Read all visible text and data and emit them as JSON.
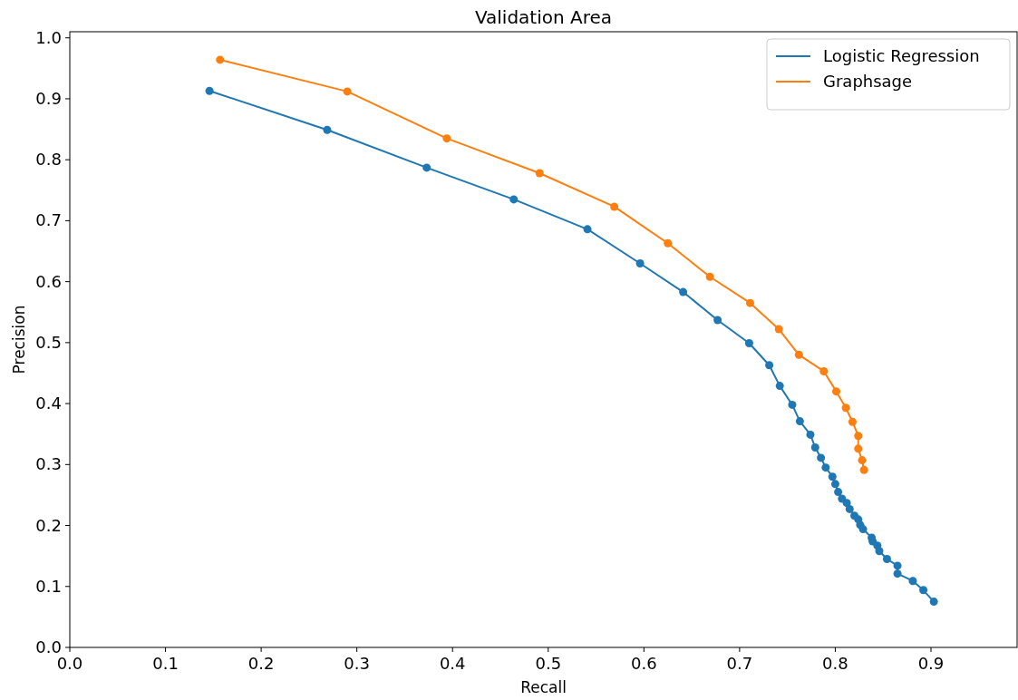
{
  "chart_data": {
    "type": "line",
    "title": "Validation Area",
    "xlabel": "Recall",
    "ylabel": "Precision",
    "xlim": [
      0,
      0.99
    ],
    "ylim": [
      0,
      1.01
    ],
    "xticks": [
      {
        "value": 0,
        "label": "0.0"
      },
      0.1,
      0.2,
      0.3,
      0.4,
      0.5,
      0.6,
      0.7,
      0.8,
      0.9
    ],
    "yticks": [
      {
        "value": 0,
        "label": "0.0"
      },
      0.1,
      0.2,
      0.3,
      0.4,
      0.5,
      0.6,
      0.7,
      0.8,
      0.9,
      {
        "value": 1,
        "label": "1.0"
      }
    ],
    "grid": false,
    "legend": "top right",
    "marker": "circle",
    "line_style": "solid",
    "series": [
      {
        "name": "Logistic Regression",
        "color": "#1f77b4",
        "x": [
          0.146,
          0.269,
          0.373,
          0.464,
          0.541,
          0.596,
          0.641,
          0.677,
          0.71,
          0.731,
          0.742,
          0.755,
          0.763,
          0.774,
          0.779,
          0.785,
          0.79,
          0.797,
          0.8,
          0.803,
          0.807,
          0.812,
          0.815,
          0.82,
          0.824,
          0.826,
          0.829,
          0.838,
          0.839,
          0.844,
          0.846,
          0.854,
          0.865,
          0.865,
          0.881,
          0.892,
          0.903
        ],
        "values": [
          0.913,
          0.849,
          0.787,
          0.735,
          0.686,
          0.63,
          0.583,
          0.537,
          0.499,
          0.463,
          0.429,
          0.398,
          0.371,
          0.349,
          0.328,
          0.311,
          0.295,
          0.28,
          0.268,
          0.255,
          0.244,
          0.237,
          0.227,
          0.216,
          0.21,
          0.201,
          0.194,
          0.18,
          0.174,
          0.167,
          0.158,
          0.145,
          0.134,
          0.121,
          0.109,
          0.094,
          0.075
        ]
      },
      {
        "name": "Graphsage",
        "color": "#ff7f0e",
        "x": [
          0.157,
          0.29,
          0.394,
          0.491,
          0.569,
          0.625,
          0.669,
          0.711,
          0.741,
          0.762,
          0.788,
          0.801,
          0.811,
          0.818,
          0.824,
          0.824,
          0.828,
          0.83
        ],
        "values": [
          0.964,
          0.912,
          0.835,
          0.778,
          0.723,
          0.663,
          0.608,
          0.565,
          0.522,
          0.48,
          0.453,
          0.42,
          0.393,
          0.37,
          0.347,
          0.326,
          0.307,
          0.291
        ]
      }
    ]
  }
}
